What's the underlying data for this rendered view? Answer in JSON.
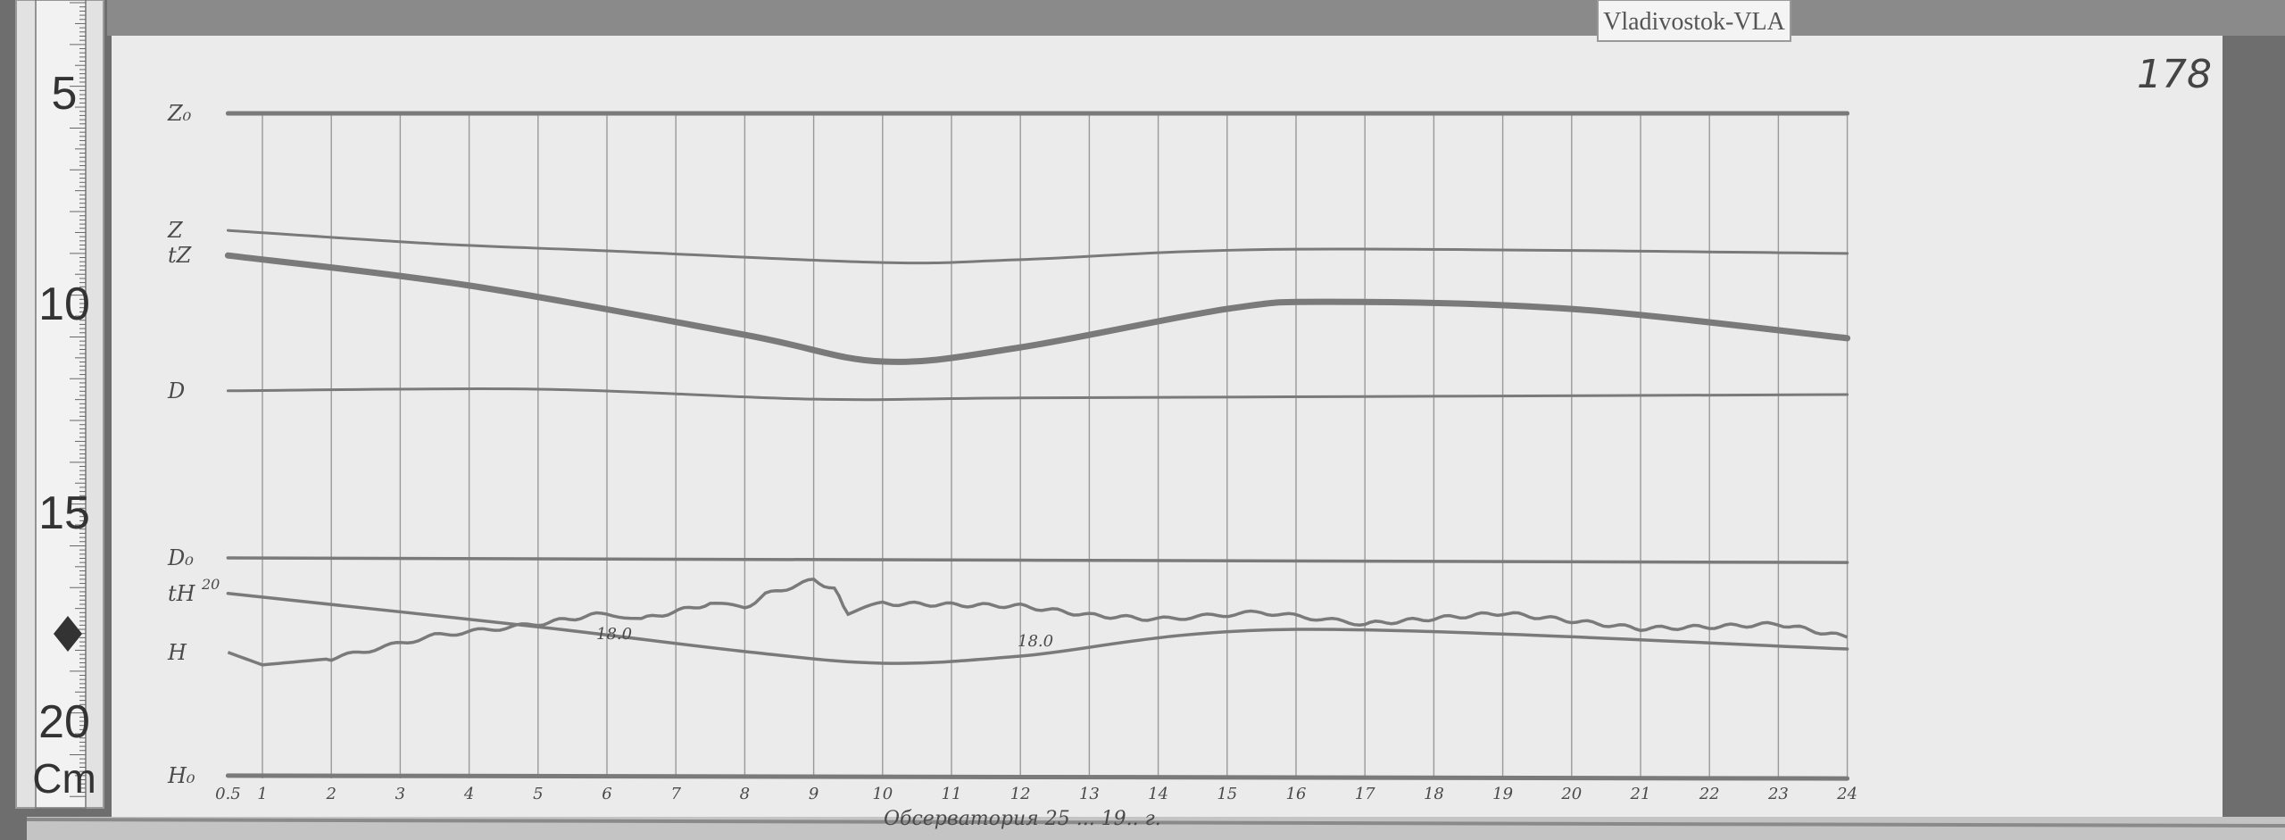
{
  "station_label": "Vladivostok-VLA",
  "sheet_number": "178",
  "caption": "Обсерватория 25 ... 19.. г.",
  "ruler": {
    "marks": [
      "5",
      "10",
      "15",
      "20"
    ],
    "unit": "Cm"
  },
  "colors": {
    "paper": "#ebebeb",
    "trace": "#7a7a7a",
    "grid": "#9a9a9a",
    "background": "#6e6e6e"
  },
  "chart_data": {
    "type": "line",
    "title": "",
    "xlabel": "",
    "ylabel": "",
    "x_ticks": [
      "0.5",
      "1",
      "2",
      "3",
      "4",
      "5",
      "6",
      "7",
      "8",
      "9",
      "10",
      "11",
      "12",
      "13",
      "14",
      "15",
      "16",
      "17",
      "18",
      "19",
      "20",
      "21",
      "22",
      "23",
      "24"
    ],
    "xlim": [
      0.5,
      24
    ],
    "y_units": "cm (from ruler)",
    "ylim": [
      5,
      21.5
    ],
    "grid": "vertical hour lines",
    "trace_labels": [
      "Z₀",
      "Z",
      "tZ",
      "D",
      "D₀",
      "tH",
      "H",
      "H₀"
    ],
    "annotations": [
      "20",
      "18.0",
      "18.0"
    ],
    "series": [
      {
        "name": "Z₀",
        "x": [
          0.5,
          24
        ],
        "y": [
          5.45,
          5.45
        ]
      },
      {
        "name": "Z",
        "x": [
          0.5,
          3.5,
          6,
          10,
          12,
          16,
          24
        ],
        "y": [
          8.25,
          8.57,
          8.74,
          9.02,
          8.95,
          8.7,
          8.8
        ]
      },
      {
        "name": "tZ",
        "x": [
          0.5,
          4,
          8,
          10,
          12,
          15,
          16.5,
          20,
          24
        ],
        "y": [
          8.85,
          9.57,
          10.75,
          11.39,
          11.05,
          10.13,
          9.96,
          10.13,
          10.83
        ]
      },
      {
        "name": "D",
        "x": [
          0.5,
          5,
          9,
          12,
          18,
          24
        ],
        "y": [
          12.09,
          12.05,
          12.29,
          12.26,
          12.22,
          12.18
        ]
      },
      {
        "name": "D₀",
        "x": [
          0.5,
          24
        ],
        "y": [
          16.09,
          16.2
        ]
      },
      {
        "name": "tH",
        "x": [
          0.5,
          5,
          8,
          10,
          12,
          16,
          24
        ],
        "y": [
          16.94,
          17.74,
          18.33,
          18.61,
          18.44,
          17.8,
          18.27
        ]
      },
      {
        "name": "H",
        "x": [
          0.5,
          1,
          2,
          3.5,
          5,
          6,
          6.5,
          7.5,
          8,
          8.3,
          9,
          9.3,
          9.5,
          10,
          12,
          13,
          14,
          15.5,
          17,
          19,
          21,
          22,
          23,
          24
        ],
        "y": [
          18.35,
          18.65,
          18.5,
          17.95,
          17.67,
          17.41,
          17.56,
          17.18,
          17.29,
          16.97,
          16.62,
          16.84,
          17.41,
          17.18,
          17.24,
          17.46,
          17.56,
          17.39,
          17.67,
          17.41,
          17.78,
          17.74,
          17.67,
          17.99
        ]
      },
      {
        "name": "H₀",
        "x": [
          0.5,
          24
        ],
        "y": [
          21.3,
          21.37
        ]
      }
    ]
  }
}
